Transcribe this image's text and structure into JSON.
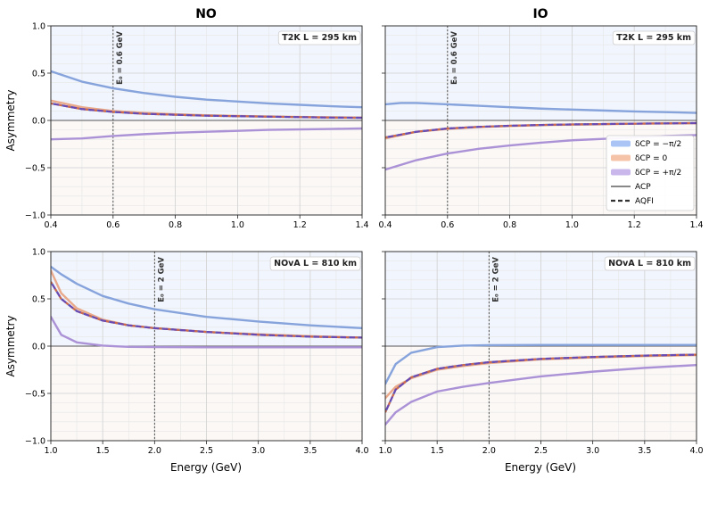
{
  "figure": {
    "column_titles": [
      "NO",
      "IO"
    ],
    "ylabel": "Asymmetry",
    "xlabel": "Energy (GeV)"
  },
  "legend": {
    "placement": "right (top-right panel)",
    "entries": [
      {
        "label": "δCP = −π/2",
        "color": "#a9c4f5",
        "style": "band"
      },
      {
        "label": "δCP = 0",
        "color": "#f5c3a8",
        "style": "band"
      },
      {
        "label": "δCP = +π/2",
        "color": "#c9b7ec",
        "style": "band"
      },
      {
        "label": "ACP",
        "color": "#888888",
        "style": "solid"
      },
      {
        "label": "AQFI",
        "color": "#333333",
        "style": "dashed"
      }
    ]
  },
  "colors": {
    "minus": "#86a3dc",
    "zero": "#e9a98a",
    "plus": "#ab92d6",
    "qfi_minus": "#4a6fd0",
    "qfi_zero": "#d06a4a",
    "qfi_plus": "#6a4ab0",
    "bg_positive": "#f1f5fd",
    "bg_negative": "#fbf8f6"
  },
  "chart_data": [
    {
      "type": "line",
      "panel": "top-left",
      "title": "NO",
      "annotation": "T2K   L = 295 km",
      "vline": {
        "x": 0.6,
        "label": "E₀ = 0.6 GeV"
      },
      "xlim": [
        0.4,
        1.4
      ],
      "ylim": [
        -1.0,
        1.0
      ],
      "xticks": [
        "0.4",
        "0.6",
        "0.8",
        "1.0",
        "1.2",
        "1.4"
      ],
      "yticks": [
        "−1.0",
        "−0.5",
        "0.0",
        "0.5",
        "1.0"
      ],
      "ylabel": "Asymmetry",
      "xlabel": "",
      "grid": true,
      "series": [
        {
          "key": "minus",
          "x": [
            0.4,
            0.5,
            0.6,
            0.7,
            0.8,
            0.9,
            1.0,
            1.1,
            1.2,
            1.3,
            1.4
          ],
          "y": [
            0.52,
            0.41,
            0.34,
            0.29,
            0.25,
            0.22,
            0.2,
            0.18,
            0.165,
            0.15,
            0.14
          ]
        },
        {
          "key": "zero",
          "x": [
            0.4,
            0.5,
            0.6,
            0.7,
            0.8,
            0.9,
            1.0,
            1.1,
            1.2,
            1.3,
            1.4
          ],
          "y": [
            0.21,
            0.14,
            0.1,
            0.08,
            0.065,
            0.055,
            0.048,
            0.042,
            0.037,
            0.033,
            0.03
          ]
        },
        {
          "key": "plus",
          "x": [
            0.4,
            0.5,
            0.6,
            0.7,
            0.8,
            0.9,
            1.0,
            1.1,
            1.2,
            1.3,
            1.4
          ],
          "y": [
            -0.2,
            -0.19,
            -0.165,
            -0.145,
            -0.13,
            -0.12,
            -0.11,
            -0.1,
            -0.095,
            -0.09,
            -0.085
          ]
        },
        {
          "key": "qfi",
          "dashed": true,
          "x": [
            0.4,
            0.5,
            0.6,
            0.7,
            0.8,
            0.9,
            1.0,
            1.1,
            1.2,
            1.3,
            1.4
          ],
          "y": [
            0.18,
            0.12,
            0.09,
            0.07,
            0.06,
            0.05,
            0.045,
            0.04,
            0.035,
            0.03,
            0.028
          ]
        }
      ]
    },
    {
      "type": "line",
      "panel": "top-right",
      "title": "IO",
      "annotation": "T2K   L = 295 km",
      "vline": {
        "x": 0.6,
        "label": "E₀ = 0.6 GeV"
      },
      "xlim": [
        0.4,
        1.4
      ],
      "ylim": [
        -1.0,
        1.0
      ],
      "xticks": [
        "0.4",
        "0.6",
        "0.8",
        "1.0",
        "1.2",
        "1.4"
      ],
      "yticks": [],
      "ylabel": "",
      "xlabel": "",
      "grid": true,
      "series": [
        {
          "key": "minus",
          "x": [
            0.4,
            0.45,
            0.5,
            0.6,
            0.7,
            0.8,
            0.9,
            1.0,
            1.1,
            1.2,
            1.3,
            1.4
          ],
          "y": [
            0.17,
            0.185,
            0.185,
            0.17,
            0.155,
            0.14,
            0.125,
            0.115,
            0.105,
            0.095,
            0.088,
            0.08
          ]
        },
        {
          "key": "zero",
          "x": [
            0.4,
            0.5,
            0.6,
            0.7,
            0.8,
            0.9,
            1.0,
            1.1,
            1.2,
            1.3,
            1.4
          ],
          "y": [
            -0.19,
            -0.12,
            -0.09,
            -0.07,
            -0.06,
            -0.05,
            -0.045,
            -0.04,
            -0.035,
            -0.032,
            -0.03
          ]
        },
        {
          "key": "plus",
          "x": [
            0.4,
            0.5,
            0.6,
            0.7,
            0.8,
            0.9,
            1.0,
            1.1,
            1.2,
            1.3,
            1.4
          ],
          "y": [
            -0.52,
            -0.42,
            -0.35,
            -0.3,
            -0.265,
            -0.235,
            -0.21,
            -0.195,
            -0.18,
            -0.165,
            -0.155
          ]
        },
        {
          "key": "qfi",
          "dashed": true,
          "x": [
            0.4,
            0.5,
            0.6,
            0.7,
            0.8,
            0.9,
            1.0,
            1.1,
            1.2,
            1.3,
            1.4
          ],
          "y": [
            -0.18,
            -0.12,
            -0.085,
            -0.068,
            -0.056,
            -0.048,
            -0.042,
            -0.038,
            -0.034,
            -0.031,
            -0.028
          ]
        }
      ]
    },
    {
      "type": "line",
      "panel": "bottom-left",
      "title": "",
      "annotation": "NOvA   L = 810 km",
      "vline": {
        "x": 2.0,
        "label": "E₀ = 2 GeV"
      },
      "xlim": [
        1.0,
        4.0
      ],
      "ylim": [
        -1.0,
        1.0
      ],
      "xticks": [
        "1.0",
        "1.5",
        "2.0",
        "2.5",
        "3.0",
        "3.5",
        "4.0"
      ],
      "yticks": [
        "−1.0",
        "−0.5",
        "0.0",
        "0.5",
        "1.0"
      ],
      "ylabel": "Asymmetry",
      "xlabel": "Energy (GeV)",
      "grid": true,
      "series": [
        {
          "key": "minus",
          "x": [
            1.0,
            1.1,
            1.25,
            1.5,
            1.75,
            2.0,
            2.5,
            3.0,
            3.5,
            4.0
          ],
          "y": [
            0.84,
            0.76,
            0.66,
            0.53,
            0.45,
            0.39,
            0.31,
            0.26,
            0.22,
            0.19
          ]
        },
        {
          "key": "zero",
          "x": [
            1.0,
            1.1,
            1.25,
            1.5,
            1.75,
            2.0,
            2.5,
            3.0,
            3.5,
            4.0
          ],
          "y": [
            0.8,
            0.56,
            0.4,
            0.28,
            0.22,
            0.19,
            0.15,
            0.125,
            0.105,
            0.09
          ]
        },
        {
          "key": "plus",
          "x": [
            1.0,
            1.1,
            1.25,
            1.5,
            1.75,
            2.0,
            2.5,
            3.0,
            3.5,
            4.0
          ],
          "y": [
            0.31,
            0.12,
            0.04,
            0.005,
            -0.008,
            -0.01,
            -0.012,
            -0.012,
            -0.012,
            -0.012
          ]
        },
        {
          "key": "qfi",
          "dashed": true,
          "x": [
            1.0,
            1.1,
            1.25,
            1.5,
            1.75,
            2.0,
            2.5,
            3.0,
            3.5,
            4.0
          ],
          "y": [
            0.68,
            0.5,
            0.37,
            0.27,
            0.22,
            0.19,
            0.15,
            0.12,
            0.1,
            0.09
          ]
        }
      ]
    },
    {
      "type": "line",
      "panel": "bottom-right",
      "title": "",
      "annotation": "NOvA   L = 810 km",
      "vline": {
        "x": 2.0,
        "label": "E₀ = 2 GeV"
      },
      "xlim": [
        1.0,
        4.0
      ],
      "ylim": [
        -1.0,
        1.0
      ],
      "xticks": [
        "1.0",
        "1.5",
        "2.0",
        "2.5",
        "3.0",
        "3.5",
        "4.0"
      ],
      "yticks": [],
      "ylabel": "",
      "xlabel": "Energy (GeV)",
      "grid": true,
      "series": [
        {
          "key": "minus",
          "x": [
            1.0,
            1.1,
            1.25,
            1.5,
            1.75,
            2.0,
            2.5,
            3.0,
            3.5,
            4.0
          ],
          "y": [
            -0.4,
            -0.19,
            -0.07,
            -0.01,
            0.005,
            0.01,
            0.012,
            0.012,
            0.012,
            0.012
          ]
        },
        {
          "key": "zero",
          "x": [
            1.0,
            1.1,
            1.25,
            1.5,
            1.75,
            2.0,
            2.5,
            3.0,
            3.5,
            4.0
          ],
          "y": [
            -0.55,
            -0.43,
            -0.34,
            -0.25,
            -0.21,
            -0.18,
            -0.14,
            -0.12,
            -0.105,
            -0.095
          ]
        },
        {
          "key": "plus",
          "x": [
            1.0,
            1.1,
            1.25,
            1.5,
            1.75,
            2.0,
            2.5,
            3.0,
            3.5,
            4.0
          ],
          "y": [
            -0.83,
            -0.7,
            -0.59,
            -0.48,
            -0.43,
            -0.39,
            -0.32,
            -0.27,
            -0.23,
            -0.2
          ]
        },
        {
          "key": "qfi",
          "dashed": true,
          "x": [
            1.0,
            1.1,
            1.25,
            1.5,
            1.75,
            2.0,
            2.5,
            3.0,
            3.5,
            4.0
          ],
          "y": [
            -0.7,
            -0.46,
            -0.33,
            -0.24,
            -0.2,
            -0.17,
            -0.135,
            -0.115,
            -0.1,
            -0.09
          ]
        }
      ]
    }
  ]
}
